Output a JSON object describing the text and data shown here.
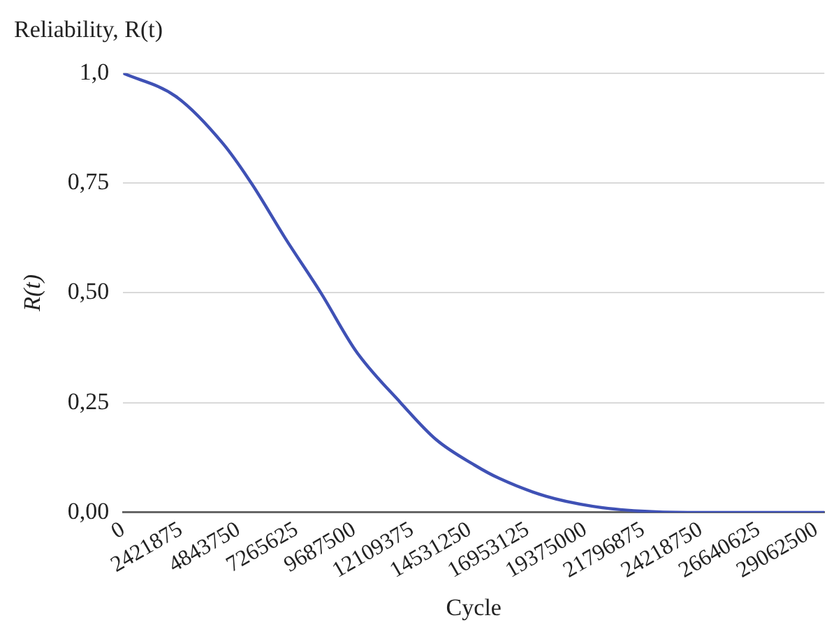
{
  "chart_data": {
    "type": "line",
    "title": "Reliability, R(t)",
    "xlabel": "Cycle",
    "ylabel": "R(t)",
    "x": [
      0,
      2210000,
      4180000,
      5370000,
      6800000,
      8290000,
      9780000,
      11630000,
      13120000,
      14730000,
      15750000,
      17720000,
      19690000,
      21710000,
      23680000,
      29400000
    ],
    "series": [
      {
        "color": "#3f51b5",
        "values": [
          1.0,
          0.947,
          0.84,
          0.75,
          0.624,
          0.5,
          0.366,
          0.25,
          0.166,
          0.108,
          0.078,
          0.037,
          0.014,
          0.003,
          0.0,
          0.0
        ]
      }
    ],
    "xlim": [
      0,
      29400000
    ],
    "xticks": [
      0,
      2421875,
      4843750,
      7265625,
      9687500,
      12109375,
      14531250,
      16953125,
      19375000,
      21796875,
      24218750,
      26640625,
      29062500
    ],
    "ylim": [
      0,
      1
    ],
    "yticks": [
      {
        "value": 0,
        "label": "0,00"
      },
      {
        "value": 0.25,
        "label": "0,25"
      },
      {
        "value": 0.5,
        "label": "0,50"
      },
      {
        "value": 0.75,
        "label": "0,75"
      },
      {
        "value": 1,
        "label": "1,0"
      }
    ],
    "grid": "y",
    "legend": false,
    "marker": "none",
    "line_style": "solid"
  }
}
